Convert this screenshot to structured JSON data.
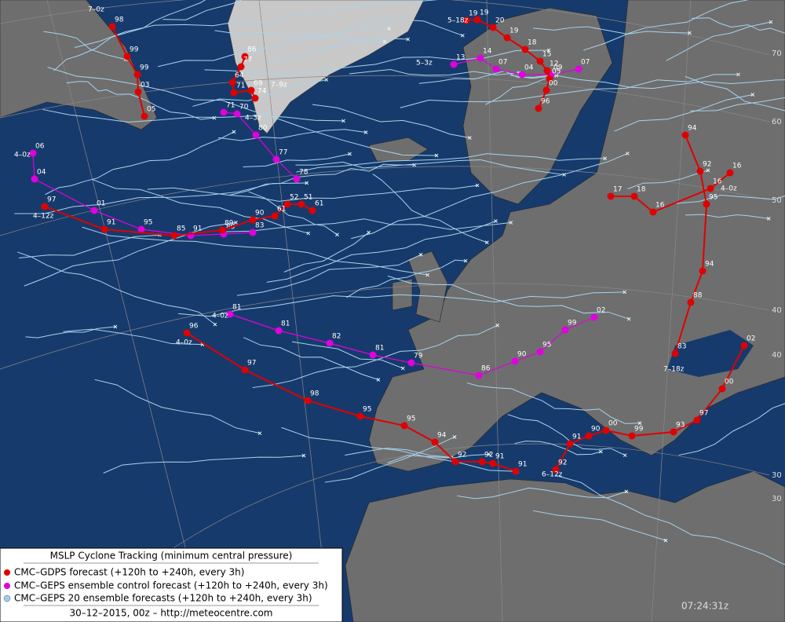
{
  "legend": {
    "title": "MSLP Cyclone Tracking (minimum central pressure)",
    "items": [
      "CMC–GDPS forecast (+120h to +240h, every 3h)",
      "CMC–GEPS ensemble control forecast (+120h to +240h, every 3h)",
      "CMC–GEPS 20 ensemble forecasts (+120h to +240h, every 3h)"
    ],
    "footer": "30–12–2015, 00z – http://meteocentre.com"
  },
  "timestamp": "07:24:31z",
  "latitude_labels": [
    "70",
    "60",
    "50",
    "40",
    "40",
    "30",
    "30"
  ],
  "gdps_tracks": [
    {
      "start": "7–0z",
      "points": [
        "98",
        "99",
        "99",
        "03",
        "05"
      ]
    },
    {
      "start": "4–12z",
      "points": [
        "97",
        "91",
        "85",
        "89",
        "90",
        "61",
        "52",
        "51",
        "61"
      ]
    },
    {
      "start": "4–0z",
      "points": [
        "96",
        "97",
        "98",
        "95",
        "95",
        "94",
        "92",
        "92",
        "91",
        "91"
      ]
    },
    {
      "start": "5–18z",
      "points": [
        "19",
        "19",
        "20",
        "19",
        "18",
        "15",
        "12",
        "05",
        "00",
        "96"
      ]
    },
    {
      "start": "7–9z",
      "points": [
        "86",
        "77",
        "64",
        "71",
        "69",
        "74"
      ]
    },
    {
      "start": "6–12z",
      "points": [
        "92",
        "91",
        "90",
        "00",
        "99",
        "93",
        "97",
        "00",
        "02"
      ]
    },
    {
      "start": "7–18z",
      "points": [
        "94",
        "92",
        "95",
        "94",
        "88",
        "83"
      ]
    },
    {
      "start": "4–0z",
      "points": [
        "17",
        "18",
        "16",
        "16",
        "16"
      ]
    }
  ],
  "geps_tracks": [
    {
      "start": "4–0z",
      "points": [
        "06",
        "04",
        "01",
        "95",
        "91",
        "89",
        "83"
      ]
    },
    {
      "start": "4–0z",
      "points": [
        "81",
        "81",
        "82",
        "81",
        "79",
        "86",
        "90",
        "95",
        "99",
        "02"
      ]
    },
    {
      "start": "5–3z",
      "points": [
        "13",
        "14",
        "07",
        "04",
        "09",
        "07"
      ]
    },
    {
      "start": "4–3z",
      "points": [
        "71",
        "70",
        "80",
        "77",
        "78"
      ]
    }
  ]
}
